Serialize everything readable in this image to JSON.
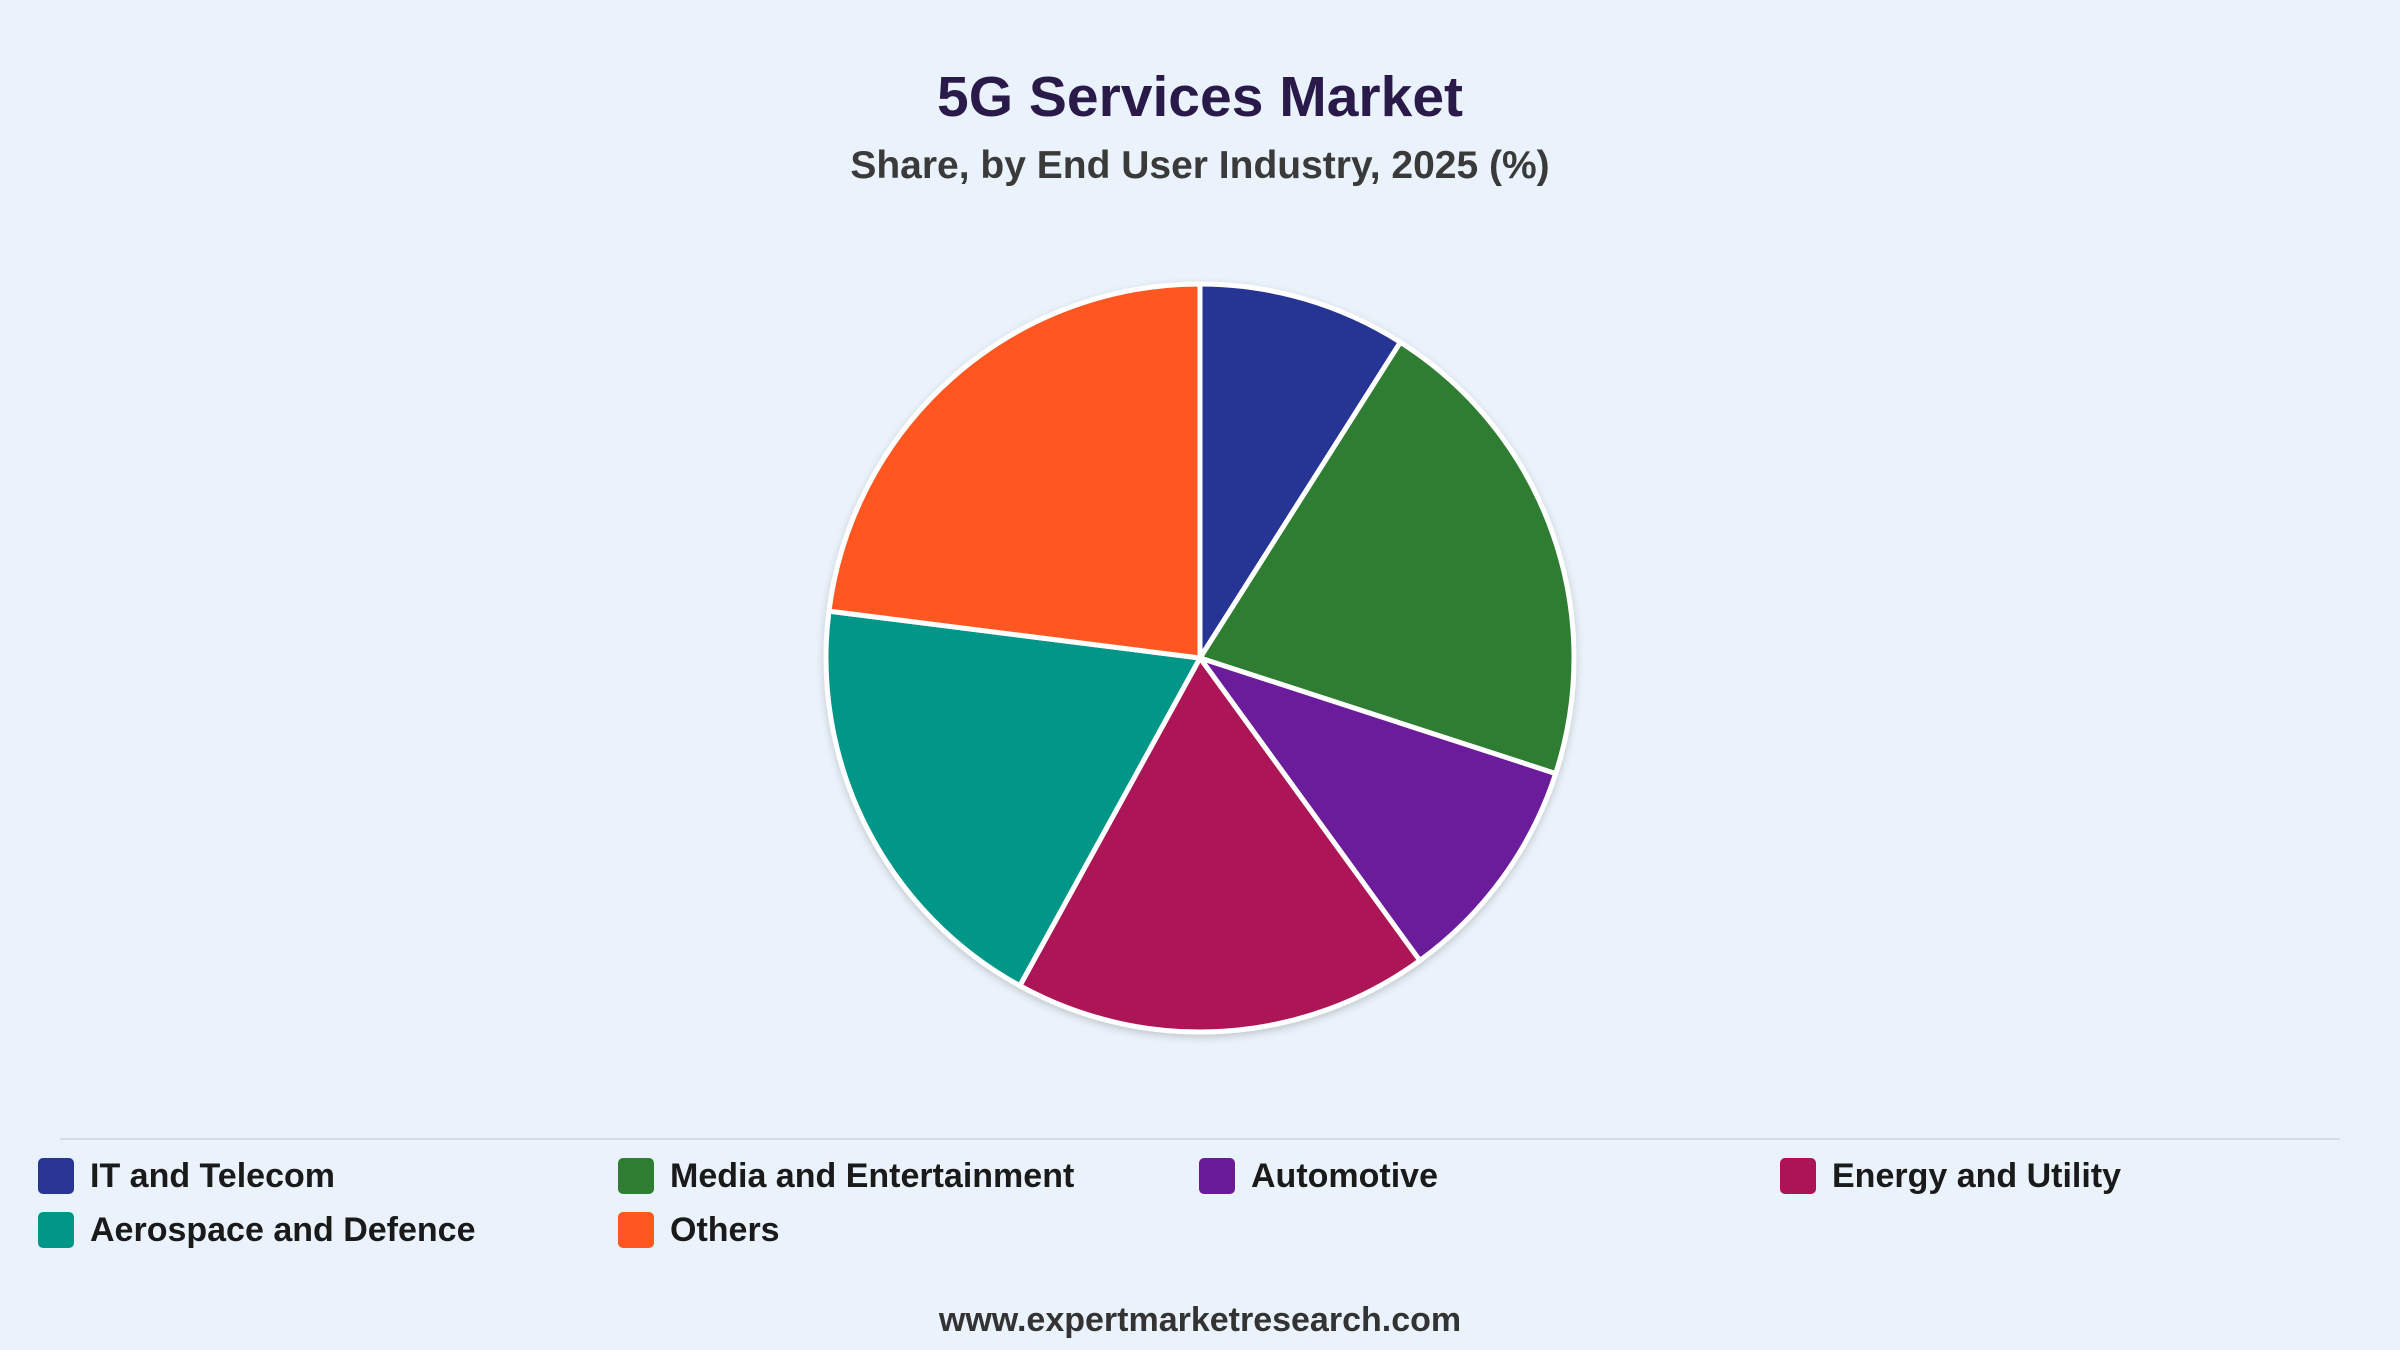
{
  "header": {
    "title": "5G Services Market",
    "subtitle": "Share, by End User Industry, 2025 (%)"
  },
  "chart_data": {
    "type": "pie",
    "title": "5G Services Market",
    "subtitle": "Share, by End User Industry, 2025 (%)",
    "unit": "%",
    "legend_position": "bottom",
    "categories": [
      "IT and Telecom",
      "Media and Entertainment",
      "Automotive",
      "Energy and Utility",
      "Aerospace and Defence",
      "Others"
    ],
    "values": [
      9,
      21,
      10,
      18,
      19,
      23
    ],
    "colors": [
      "#283593",
      "#2e7d32",
      "#6a1b9a",
      "#ad1457",
      "#009688",
      "#ff5722"
    ]
  },
  "legend": {
    "items": [
      {
        "label": "IT and Telecom",
        "color": "#283593"
      },
      {
        "label": "Media and Entertainment",
        "color": "#2e7d32"
      },
      {
        "label": "Automotive",
        "color": "#6a1b9a"
      },
      {
        "label": "Energy and Utility",
        "color": "#ad1457"
      },
      {
        "label": "Aerospace and Defence",
        "color": "#009688"
      },
      {
        "label": "Others",
        "color": "#ff5722"
      }
    ]
  },
  "footer": {
    "source": "www.expertmarketresearch.com"
  }
}
